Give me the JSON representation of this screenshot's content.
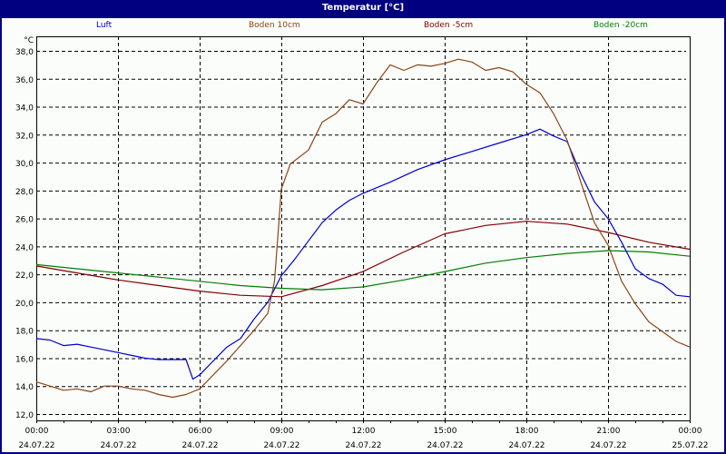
{
  "window": {
    "title": "Temperatur [°C]"
  },
  "legend": [
    {
      "label": "Luft",
      "color": "#0000cc"
    },
    {
      "label": "Boden 10cm",
      "color": "#8b4513"
    },
    {
      "label": "Boden -5cm",
      "color": "#800000"
    },
    {
      "label": "Boden -20cm",
      "color": "#008000"
    }
  ],
  "axes": {
    "y_unit": "°C",
    "y_ticks": [
      "38,0",
      "36,0",
      "34,0",
      "32,0",
      "30,0",
      "28,0",
      "26,0",
      "24,0",
      "22,0",
      "20,0",
      "18,0",
      "16,0",
      "14,0",
      "12,0"
    ],
    "x_ticks": [
      {
        "time": "00:00",
        "date": "24.07.22"
      },
      {
        "time": "03:00",
        "date": "24.07.22"
      },
      {
        "time": "06:00",
        "date": "24.07.22"
      },
      {
        "time": "09:00",
        "date": "24.07.22"
      },
      {
        "time": "12:00",
        "date": "24.07.22"
      },
      {
        "time": "15:00",
        "date": "24.07.22"
      },
      {
        "time": "18:00",
        "date": "24.07.22"
      },
      {
        "time": "21:00",
        "date": "24.07.22"
      },
      {
        "time": "00:00",
        "date": "25.07.22"
      }
    ]
  },
  "chart_data": {
    "type": "line",
    "title": "Temperatur [°C]",
    "xlabel": "",
    "ylabel": "°C",
    "ylim": [
      12,
      38
    ],
    "xlim": [
      "24.07.22 00:00",
      "25.07.22 00:00"
    ],
    "grid": true,
    "legend_position": "top",
    "series": [
      {
        "name": "Luft",
        "color": "#0000cc",
        "x_hours": [
          0,
          0.5,
          1,
          1.5,
          2,
          2.5,
          3,
          3.5,
          4,
          4.5,
          5,
          5.5,
          5.75,
          6,
          6.5,
          7,
          7.5,
          8,
          8.5,
          9,
          9.5,
          10,
          10.5,
          11,
          11.5,
          12,
          13,
          14,
          15,
          16,
          17,
          18,
          18.5,
          19,
          19.5,
          20,
          20.5,
          21,
          21.5,
          22,
          22.5,
          23,
          23.5,
          24
        ],
        "values": [
          17.4,
          17.3,
          16.9,
          17.0,
          16.8,
          16.6,
          16.4,
          16.2,
          16.0,
          15.9,
          15.9,
          15.9,
          14.5,
          14.8,
          15.8,
          16.8,
          17.4,
          18.8,
          20.0,
          21.9,
          23.1,
          24.4,
          25.7,
          26.6,
          27.3,
          27.8,
          28.6,
          29.5,
          30.2,
          30.8,
          31.4,
          32.0,
          32.4,
          31.9,
          31.5,
          29.2,
          27.2,
          26.0,
          24.3,
          22.4,
          21.7,
          21.3,
          20.5,
          20.4
        ]
      },
      {
        "name": "Boden 10cm",
        "color": "#8b4513",
        "x_hours": [
          0,
          0.5,
          1,
          1.5,
          2,
          2.5,
          3,
          3.5,
          4,
          4.5,
          5,
          5.5,
          6,
          6.5,
          7,
          7.5,
          8,
          8.5,
          8.75,
          9,
          9.33,
          10,
          10.5,
          11,
          11.5,
          12,
          12.5,
          13,
          13.5,
          14,
          14.5,
          15,
          15.5,
          16,
          16.5,
          17,
          17.5,
          18,
          18.5,
          19,
          19.5,
          20,
          20.5,
          21,
          21.5,
          22,
          22.5,
          23,
          23.5,
          24
        ],
        "values": [
          14.3,
          14.0,
          13.7,
          13.8,
          13.6,
          14.0,
          14.0,
          13.8,
          13.7,
          13.4,
          13.2,
          13.4,
          13.8,
          14.8,
          15.8,
          16.9,
          18.0,
          19.2,
          21.5,
          28.1,
          29.9,
          30.9,
          32.9,
          33.5,
          34.5,
          34.2,
          35.7,
          37.0,
          36.6,
          37.0,
          36.9,
          37.1,
          37.4,
          37.2,
          36.6,
          36.8,
          36.5,
          35.6,
          35.0,
          33.5,
          31.6,
          28.6,
          25.7,
          24.1,
          21.5,
          19.9,
          18.6,
          17.9,
          17.2,
          16.8
        ]
      },
      {
        "name": "Boden -5cm",
        "color": "#800000",
        "x_hours": [
          0,
          1.5,
          3,
          4.5,
          6,
          7.5,
          9,
          10.5,
          12,
          13.5,
          15,
          16.5,
          18,
          19.5,
          21,
          22.5,
          24
        ],
        "values": [
          22.6,
          22.1,
          21.6,
          21.2,
          20.8,
          20.5,
          20.4,
          21.2,
          22.2,
          23.6,
          24.9,
          25.5,
          25.8,
          25.6,
          25.0,
          24.3,
          23.8
        ]
      },
      {
        "name": "Boden -20cm",
        "color": "#008000",
        "x_hours": [
          0,
          1.5,
          3,
          4.5,
          6,
          7.5,
          9,
          10.5,
          12,
          13.5,
          15,
          16.5,
          18,
          19.5,
          21,
          22.5,
          24
        ],
        "values": [
          22.7,
          22.4,
          22.1,
          21.8,
          21.5,
          21.2,
          21.0,
          20.9,
          21.1,
          21.6,
          22.2,
          22.8,
          23.2,
          23.5,
          23.7,
          23.6,
          23.3
        ]
      }
    ]
  }
}
